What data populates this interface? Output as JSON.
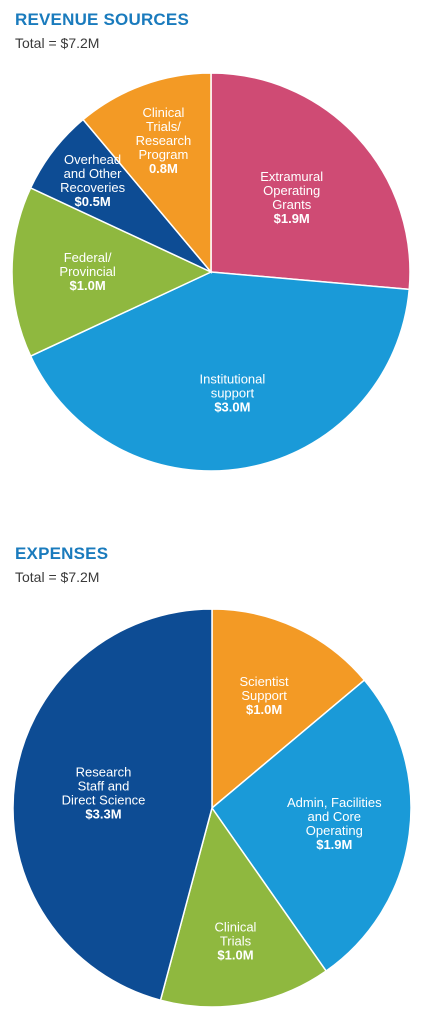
{
  "chart_data": [
    {
      "id": "revenue",
      "type": "pie",
      "title": "REVENUE SOURCES",
      "subtitle": "Total = $7.2M",
      "slices": [
        {
          "label": "Extramural Operating Grants",
          "label_lines": [
            "Extramural",
            "Operating",
            "Grants"
          ],
          "value_label": "$1.9M",
          "value": 1.9,
          "color": "#cf4b74"
        },
        {
          "label": "Institutional support",
          "label_lines": [
            "Institutional",
            "support"
          ],
          "value_label": "$3.0M",
          "value": 3.0,
          "color": "#1a9ad8"
        },
        {
          "label": "Federal/ Provincial",
          "label_lines": [
            "Federal/",
            "Provincial"
          ],
          "value_label": "$1.0M",
          "value": 1.0,
          "color": "#8fb83f"
        },
        {
          "label": "Overhead and Other Recoveries",
          "label_lines": [
            "Overhead",
            "and Other",
            "Recoveries"
          ],
          "value_label": "$0.5M",
          "value": 0.5,
          "color": "#0d4c94"
        },
        {
          "label": "Clinical Trials/ Research Program",
          "label_lines": [
            "Clinical",
            "Trials/",
            "Research",
            "Program"
          ],
          "value_label": "0.8M",
          "value": 0.8,
          "color": "#f39a25"
        }
      ]
    },
    {
      "id": "expenses",
      "type": "pie",
      "title": "EXPENSES",
      "subtitle": "Total = $7.2M",
      "slices": [
        {
          "label": "Scientist Support",
          "label_lines": [
            "Scientist",
            "Support"
          ],
          "value_label": "$1.0M",
          "value": 1.0,
          "color": "#f39a25"
        },
        {
          "label": "Admin, Facilities and Core Operating",
          "label_lines": [
            "Admin, Facilities",
            "and Core",
            "Operating"
          ],
          "value_label": "$1.9M",
          "value": 1.9,
          "color": "#1a9ad8"
        },
        {
          "label": "Clinical Trials",
          "label_lines": [
            "Clinical",
            "Trials"
          ],
          "value_label": "$1.0M",
          "value": 1.0,
          "color": "#8fb83f"
        },
        {
          "label": "Research Staff and Direct Science",
          "label_lines": [
            "Research",
            "Staff and",
            "Direct Science"
          ],
          "value_label": "$3.3M",
          "value": 3.3,
          "color": "#0d4c94"
        }
      ]
    }
  ]
}
